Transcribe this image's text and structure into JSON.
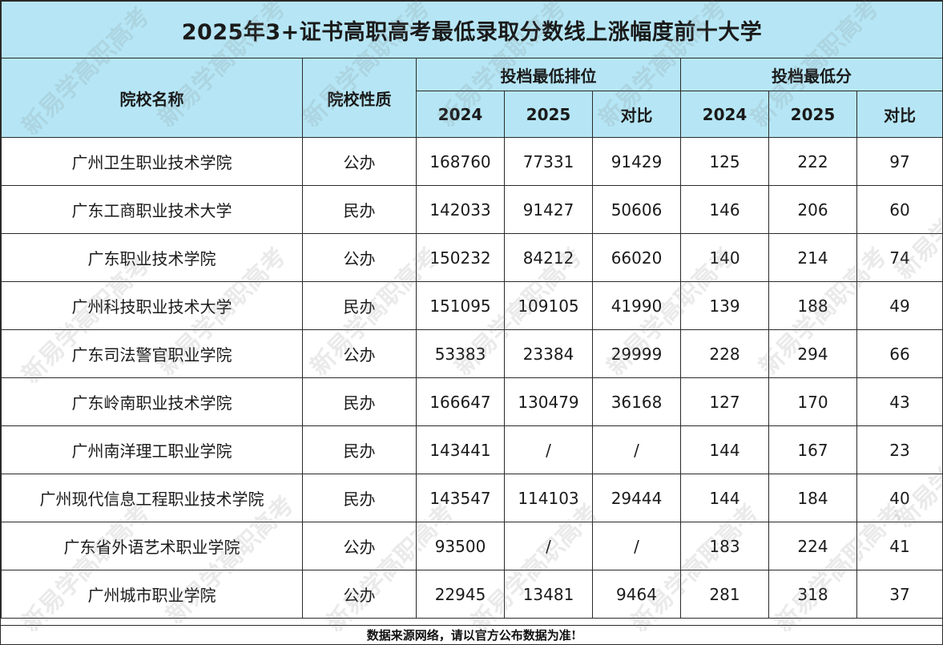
{
  "title": "2025年3+证书高职高考最低录取分数线上涨幅度前十大学",
  "headers": {
    "school": "院校名称",
    "type": "院校性质",
    "rank_group": "投档最低排位",
    "score_group": "投档最低分",
    "y2024": "2024",
    "y2025": "2025",
    "compare": "对比"
  },
  "rows": [
    {
      "name": "广州卫生职业技术学院",
      "type": "公办",
      "rank2024": "168760",
      "rank2025": "77331",
      "rankDiff": "91429",
      "score2024": "125",
      "score2025": "222",
      "scoreDiff": "97"
    },
    {
      "name": "广东工商职业技术大学",
      "type": "民办",
      "rank2024": "142033",
      "rank2025": "91427",
      "rankDiff": "50606",
      "score2024": "146",
      "score2025": "206",
      "scoreDiff": "60"
    },
    {
      "name": "广东职业技术学院",
      "type": "公办",
      "rank2024": "150232",
      "rank2025": "84212",
      "rankDiff": "66020",
      "score2024": "140",
      "score2025": "214",
      "scoreDiff": "74"
    },
    {
      "name": "广州科技职业技术大学",
      "type": "民办",
      "rank2024": "151095",
      "rank2025": "109105",
      "rankDiff": "41990",
      "score2024": "139",
      "score2025": "188",
      "scoreDiff": "49"
    },
    {
      "name": "广东司法警官职业学院",
      "type": "公办",
      "rank2024": "53383",
      "rank2025": "23384",
      "rankDiff": "29999",
      "score2024": "228",
      "score2025": "294",
      "scoreDiff": "66"
    },
    {
      "name": "广东岭南职业技术学院",
      "type": "民办",
      "rank2024": "166647",
      "rank2025": "130479",
      "rankDiff": "36168",
      "score2024": "127",
      "score2025": "170",
      "scoreDiff": "43"
    },
    {
      "name": "广州南洋理工职业学院",
      "type": "民办",
      "rank2024": "143441",
      "rank2025": "/",
      "rankDiff": "/",
      "score2024": "144",
      "score2025": "167",
      "scoreDiff": "23"
    },
    {
      "name": "广州现代信息工程职业技术学院",
      "type": "民办",
      "rank2024": "143547",
      "rank2025": "114103",
      "rankDiff": "29444",
      "score2024": "144",
      "score2025": "184",
      "scoreDiff": "40"
    },
    {
      "name": "广东省外语艺术职业学院",
      "type": "公办",
      "rank2024": "93500",
      "rank2025": "/",
      "rankDiff": "/",
      "score2024": "183",
      "score2025": "224",
      "scoreDiff": "41"
    },
    {
      "name": "广州城市职业学院",
      "type": "公办",
      "rank2024": "22945",
      "rank2025": "13481",
      "rankDiff": "9464",
      "score2024": "281",
      "score2025": "318",
      "scoreDiff": "37"
    }
  ],
  "footer": "数据来源网络，请以官方公布数据为准!",
  "watermark": "新易学高职高考",
  "colors": {
    "header_bg": "#b6e6f5",
    "border": "#2a2a2a"
  }
}
